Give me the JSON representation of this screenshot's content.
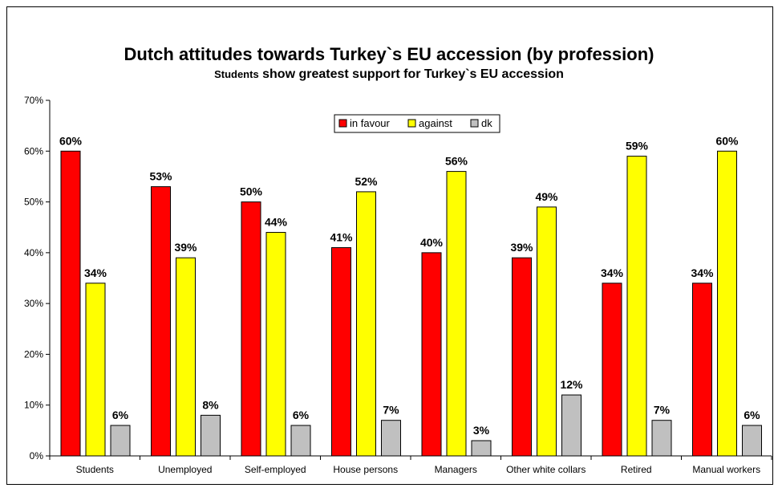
{
  "chart_data": {
    "type": "bar",
    "title": "Dutch attitudes towards Turkey`s EU accession (by profession)",
    "subtitle_lead": "Students",
    "subtitle_rest": " show greatest support for Turkey`s EU accession",
    "categories": [
      "Students",
      "Unemployed",
      "Self-employed",
      "House persons",
      "Managers",
      "Other white collars",
      "Retired",
      "Manual workers"
    ],
    "series": [
      {
        "name": "in favour",
        "color": "#ff0000",
        "values": [
          60,
          53,
          50,
          41,
          40,
          39,
          34,
          34
        ]
      },
      {
        "name": "against",
        "color": "#ffff00",
        "values": [
          34,
          39,
          44,
          52,
          56,
          49,
          59,
          60
        ]
      },
      {
        "name": "dk",
        "color": "#c0c0c0",
        "values": [
          6,
          8,
          6,
          7,
          3,
          12,
          7,
          6
        ]
      }
    ],
    "ylim": [
      0,
      70
    ],
    "yticks": [
      0,
      10,
      20,
      30,
      40,
      50,
      60,
      70
    ],
    "value_suffix": "%",
    "legend_position": "top-center",
    "grid": false
  }
}
